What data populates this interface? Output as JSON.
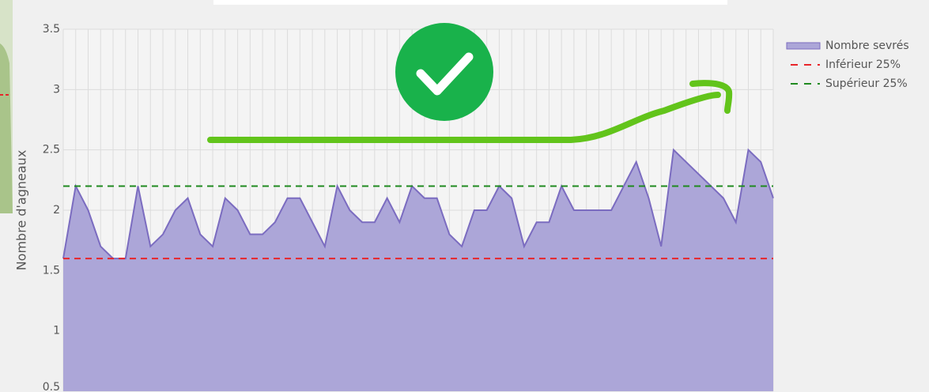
{
  "chart_data": {
    "type": "area",
    "y_label": "Nombre d'agneaux",
    "ylim": [
      0.5,
      3.5
    ],
    "yticks": [
      0.5,
      1,
      1.5,
      2,
      2.5,
      3,
      3.5
    ],
    "grid": true,
    "legend": "right",
    "series": [
      {
        "name": "Nombre sevrés",
        "color": "#7b6cc0",
        "fill": "#aca6d8",
        "values": [
          1.6,
          2.2,
          2.0,
          1.7,
          1.6,
          1.6,
          2.2,
          1.7,
          1.8,
          2.0,
          2.1,
          1.8,
          1.7,
          2.1,
          2.0,
          1.8,
          1.8,
          1.9,
          2.1,
          2.1,
          1.9,
          1.7,
          2.2,
          2.0,
          1.9,
          1.9,
          2.1,
          1.9,
          2.2,
          2.1,
          2.1,
          1.8,
          1.7,
          2.0,
          2.0,
          2.2,
          2.1,
          1.7,
          1.9,
          1.9,
          2.2,
          2.0,
          2.0,
          2.0,
          2.0,
          2.2,
          2.4,
          2.1,
          1.7,
          2.5,
          2.4,
          2.3,
          2.2,
          2.1,
          1.9,
          2.5,
          2.4,
          2.1
        ]
      }
    ],
    "thresholds": [
      {
        "name": "Inférieur 25%",
        "color": "#e8252a",
        "value": 1.6
      },
      {
        "name": "Supérieur 25%",
        "color": "#1f8a1f",
        "value": 2.2
      }
    ]
  }
}
